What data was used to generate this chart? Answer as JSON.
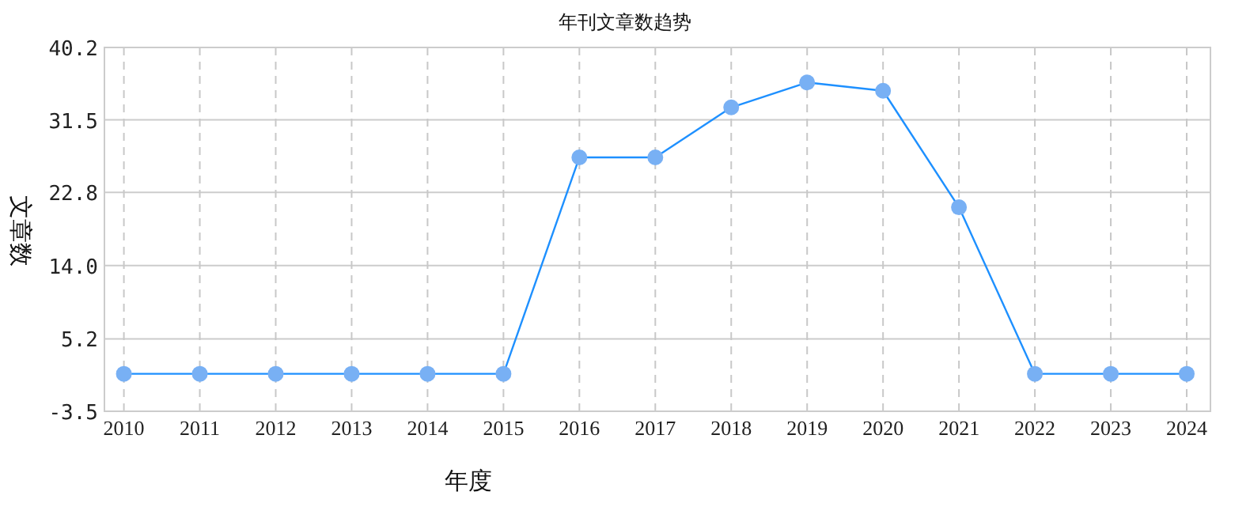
{
  "chart_data": {
    "type": "line",
    "title": "年刊文章数趋势",
    "xlabel": "年度",
    "ylabel": "文章数",
    "categories": [
      "2010",
      "2011",
      "2012",
      "2013",
      "2014",
      "2015",
      "2016",
      "2017",
      "2018",
      "2019",
      "2020",
      "2021",
      "2022",
      "2023",
      "2024"
    ],
    "series": [
      {
        "color": "#1e90ff",
        "values": [
          1,
          1,
          1,
          1,
          1,
          1,
          27,
          27,
          33,
          36,
          35,
          21,
          1,
          1,
          1
        ]
      }
    ],
    "ylim": [
      -3.5,
      40.2
    ],
    "yticks": [
      -3.5,
      5.2,
      {
        "value": 14,
        "label": "14.0"
      },
      22.8,
      31.5,
      40.2
    ],
    "grid": true,
    "marker": "circle",
    "line_style": "solid"
  }
}
